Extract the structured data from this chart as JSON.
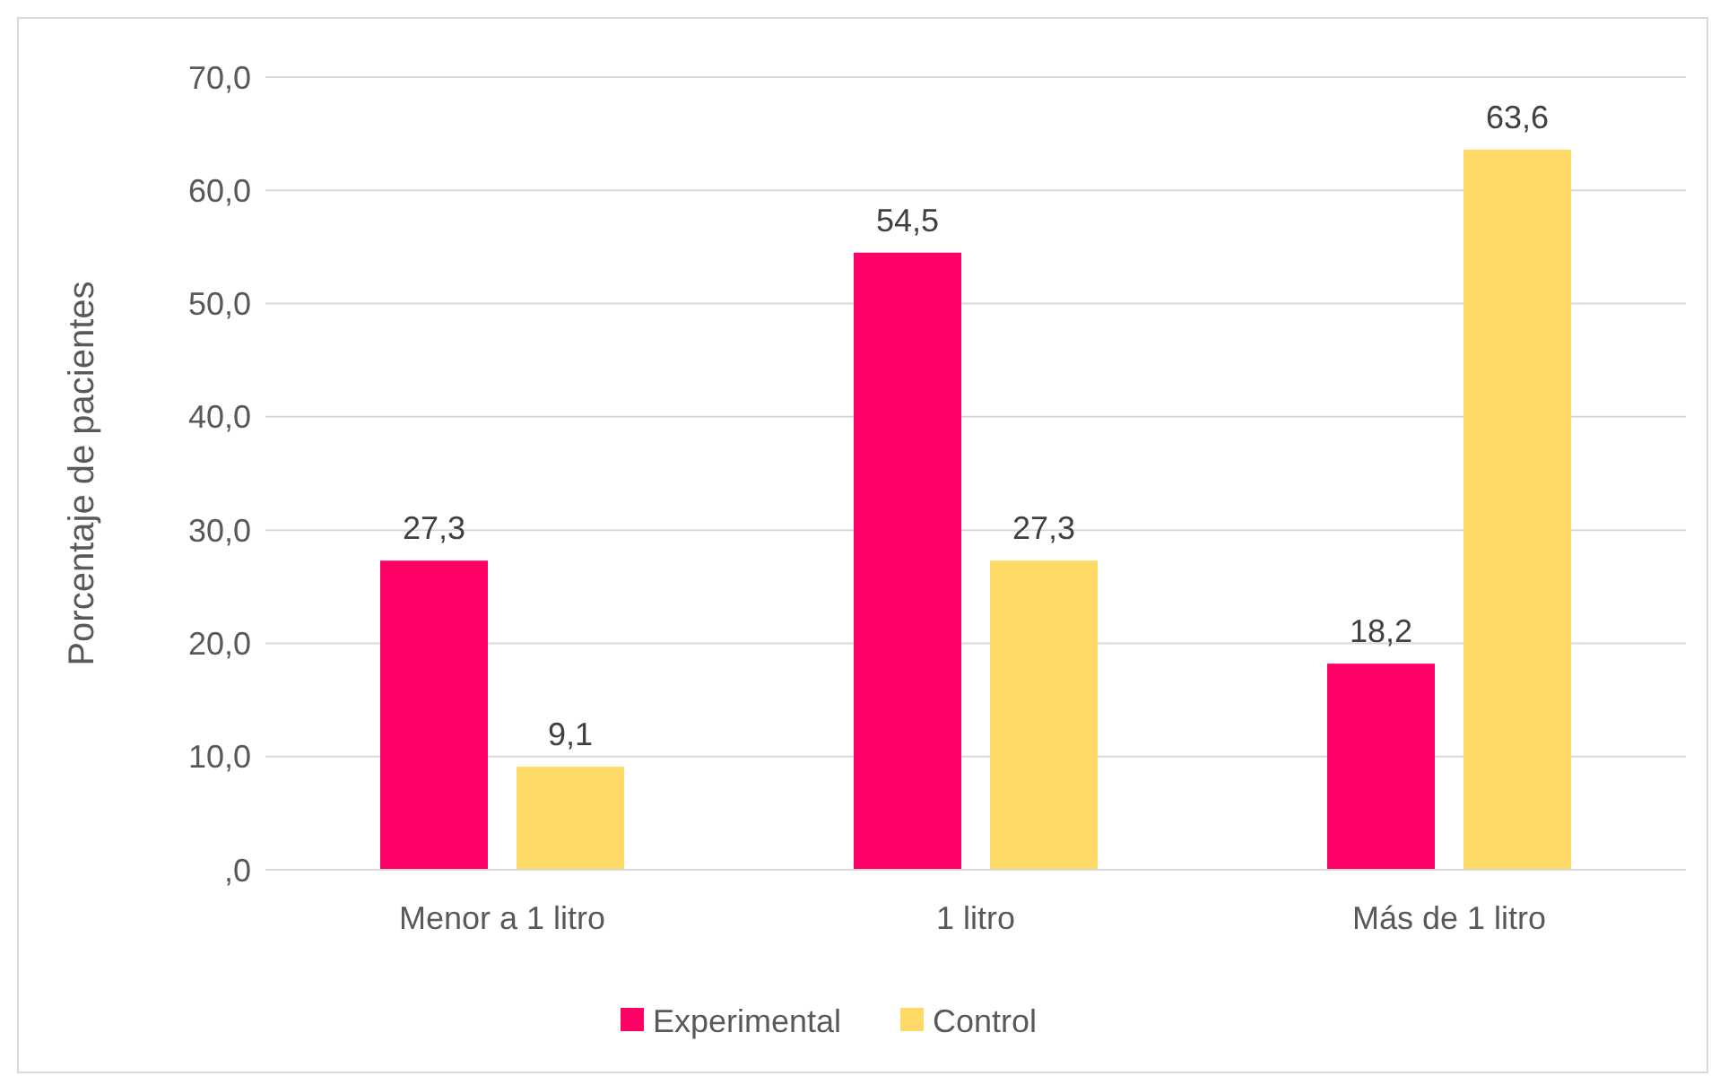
{
  "chart_data": {
    "type": "bar",
    "ylabel": "Porcentaje de pacientes",
    "categories": [
      "Menor a 1 litro",
      "1 litro",
      "Más de 1 litro"
    ],
    "series": [
      {
        "name": "Experimental",
        "color": "#ff0066",
        "values": [
          27.3,
          54.5,
          18.2
        ],
        "value_labels": [
          "27,3",
          "54,5",
          "18,2"
        ]
      },
      {
        "name": "Control",
        "color": "#ffd966",
        "values": [
          9.1,
          27.3,
          63.6
        ],
        "value_labels": [
          "9,1",
          "27,3",
          "63,6"
        ]
      }
    ],
    "ylim": [
      0,
      70
    ],
    "yticks": [
      {
        "value": 0,
        "label": ",0"
      },
      {
        "value": 10,
        "label": "10,0"
      },
      {
        "value": 20,
        "label": "20,0"
      },
      {
        "value": 30,
        "label": "30,0"
      },
      {
        "value": 40,
        "label": "40,0"
      },
      {
        "value": 50,
        "label": "50,0"
      },
      {
        "value": 60,
        "label": "60,0"
      },
      {
        "value": 70,
        "label": "70,0"
      }
    ],
    "grid": "y",
    "legend": "bottom"
  }
}
